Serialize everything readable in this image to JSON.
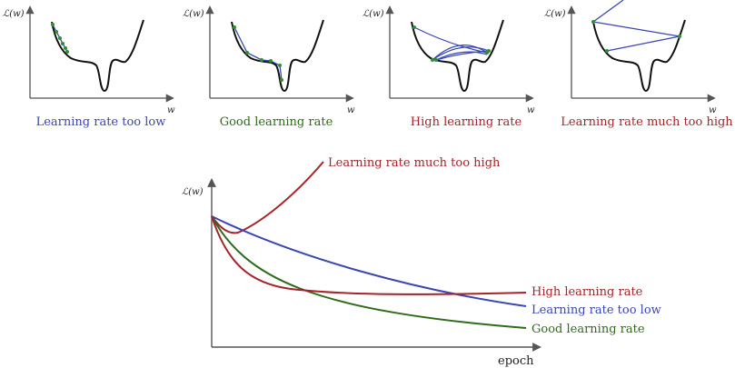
{
  "colors": {
    "blue": "#3a46b4",
    "green": "#2e6b1a",
    "red": "#a3252a",
    "axis": "#555555",
    "loss_curve": "#111111",
    "step_marker": "#2f8f2f"
  },
  "panels": [
    {
      "caption": "Learning rate too low",
      "color": "blue",
      "y_label": "ℒ(w)",
      "x_label": "w"
    },
    {
      "caption": "Good learning rate",
      "color": "green",
      "y_label": "ℒ(w)",
      "x_label": "w"
    },
    {
      "caption": "High learning rate",
      "color": "red",
      "y_label": "ℒ(w)",
      "x_label": "w"
    },
    {
      "caption": "Learning rate much too high",
      "color": "red",
      "y_label": "ℒ(w)",
      "x_label": "w"
    }
  ],
  "main_plot": {
    "y_label": "ℒ(w)",
    "x_label": "epoch",
    "curves": {
      "much_too_high": {
        "label": "Learning rate much too high",
        "color": "red"
      },
      "high": {
        "label": "High learning rate",
        "color": "red"
      },
      "too_low": {
        "label": "Learning rate too low",
        "color": "blue"
      },
      "good": {
        "label": "Good learning rate",
        "color": "green"
      }
    }
  }
}
